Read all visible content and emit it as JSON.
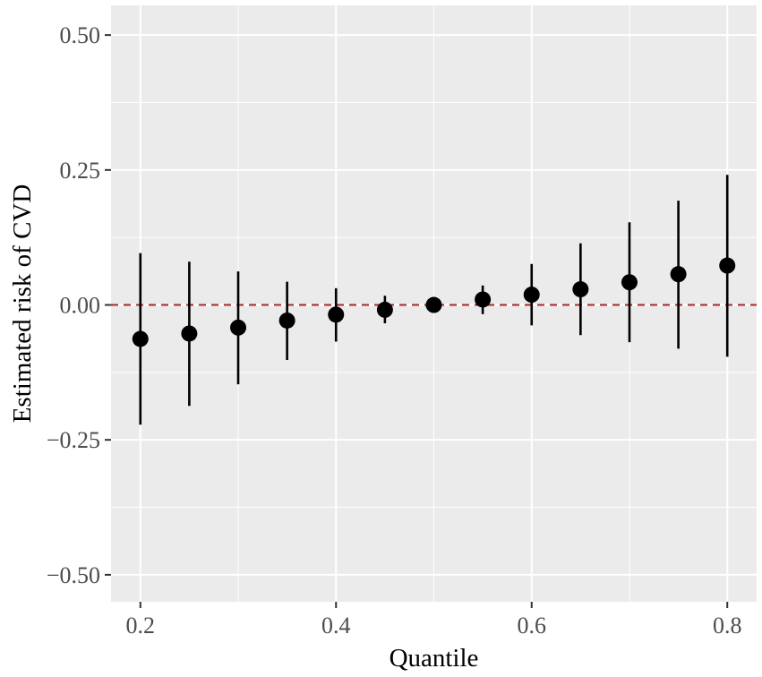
{
  "chart_data": {
    "type": "scatter",
    "title": "",
    "xlabel": "Quantile",
    "ylabel": "Estimated risk of CVD",
    "xlim": [
      0.17,
      0.83
    ],
    "ylim": [
      -0.55,
      0.555
    ],
    "x_ticks": [
      0.2,
      0.4,
      0.6,
      0.8
    ],
    "x_tick_labels": [
      "0.2",
      "0.4",
      "0.6",
      "0.8"
    ],
    "y_ticks": [
      0.5,
      0.25,
      0.0,
      -0.25,
      -0.5
    ],
    "y_tick_labels": [
      "0.50",
      "0.25",
      "0.00",
      "−0.25",
      "−0.50"
    ],
    "reference_line": {
      "y": 0.0,
      "style": "dashed",
      "color": "#a52a2a"
    },
    "grid": true,
    "points": [
      {
        "x": 0.2,
        "y": -0.063,
        "lower": -0.222,
        "upper": 0.096
      },
      {
        "x": 0.25,
        "y": -0.053,
        "lower": -0.187,
        "upper": 0.08
      },
      {
        "x": 0.3,
        "y": -0.042,
        "lower": -0.147,
        "upper": 0.062
      },
      {
        "x": 0.35,
        "y": -0.029,
        "lower": -0.102,
        "upper": 0.043
      },
      {
        "x": 0.4,
        "y": -0.018,
        "lower": -0.068,
        "upper": 0.031
      },
      {
        "x": 0.45,
        "y": -0.009,
        "lower": -0.034,
        "upper": 0.017
      },
      {
        "x": 0.5,
        "y": 0.0,
        "lower": 0.0,
        "upper": 0.0
      },
      {
        "x": 0.55,
        "y": 0.01,
        "lower": -0.017,
        "upper": 0.036
      },
      {
        "x": 0.6,
        "y": 0.019,
        "lower": -0.038,
        "upper": 0.076
      },
      {
        "x": 0.65,
        "y": 0.029,
        "lower": -0.056,
        "upper": 0.114
      },
      {
        "x": 0.7,
        "y": 0.042,
        "lower": -0.069,
        "upper": 0.153
      },
      {
        "x": 0.75,
        "y": 0.057,
        "lower": -0.081,
        "upper": 0.193
      },
      {
        "x": 0.8,
        "y": 0.073,
        "lower": -0.096,
        "upper": 0.241
      }
    ],
    "colors": {
      "panel": "#ebebeb",
      "grid": "#ffffff",
      "point": "#000000",
      "errorbar": "#000000"
    }
  }
}
